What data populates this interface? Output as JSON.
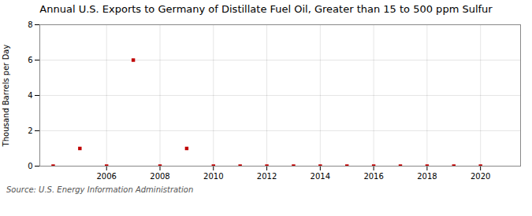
{
  "chart_data": {
    "type": "scatter",
    "title": "Annual U.S. Exports to Germany of Distillate Fuel Oil, Greater than 15 to 500 ppm Sulfur",
    "ylabel": "Thousand Barrels per Day",
    "source": "Source: U.S. Energy Information Administration",
    "x": [
      2004,
      2005,
      2006,
      2007,
      2008,
      2009,
      2010,
      2011,
      2012,
      2013,
      2014,
      2015,
      2016,
      2017,
      2018,
      2019,
      2020
    ],
    "values": [
      0,
      1,
      0,
      6,
      0,
      1,
      0,
      0,
      0,
      0,
      0,
      0,
      0,
      0,
      0,
      0,
      0
    ],
    "color": "#c00000",
    "marker": "square",
    "xlim": [
      2003.5,
      2021.5
    ],
    "xticks": [
      2006,
      2008,
      2010,
      2012,
      2014,
      2016,
      2018,
      2020
    ],
    "ylim": [
      0,
      8
    ],
    "yticks": [
      0,
      2,
      4,
      6,
      8
    ],
    "grid": true
  }
}
